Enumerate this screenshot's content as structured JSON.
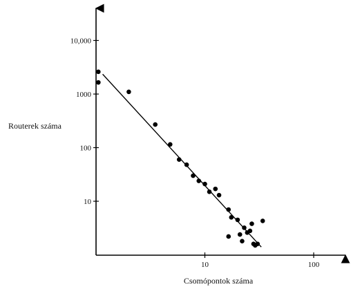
{
  "chart_data": {
    "type": "scatter",
    "title": "",
    "xlabel": "Csomópontok száma",
    "ylabel": "Routerek száma",
    "x_scale": "log",
    "y_scale": "log",
    "xlim": [
      1,
      250
    ],
    "ylim": [
      1,
      50000
    ],
    "grid": false,
    "x_ticks": [
      {
        "value": 10,
        "label": "10"
      },
      {
        "value": 100,
        "label": "100"
      }
    ],
    "y_ticks": [
      {
        "value": 10,
        "label": "10"
      },
      {
        "value": 100,
        "label": "100"
      },
      {
        "value": 1000,
        "label": "1000"
      },
      {
        "value": 10000,
        "label": "10,000"
      }
    ],
    "points": [
      {
        "x": 1.05,
        "y": 2600
      },
      {
        "x": 1.05,
        "y": 1650
      },
      {
        "x": 2.0,
        "y": 1100
      },
      {
        "x": 3.5,
        "y": 270
      },
      {
        "x": 4.8,
        "y": 115
      },
      {
        "x": 5.8,
        "y": 60
      },
      {
        "x": 6.8,
        "y": 48
      },
      {
        "x": 7.8,
        "y": 30
      },
      {
        "x": 8.8,
        "y": 24
      },
      {
        "x": 10.0,
        "y": 21
      },
      {
        "x": 11.0,
        "y": 15
      },
      {
        "x": 12.5,
        "y": 17
      },
      {
        "x": 13.5,
        "y": 13
      },
      {
        "x": 16.5,
        "y": 7
      },
      {
        "x": 17.5,
        "y": 5
      },
      {
        "x": 20.0,
        "y": 4.5
      },
      {
        "x": 16.5,
        "y": 2.2
      },
      {
        "x": 21.0,
        "y": 2.4
      },
      {
        "x": 22.0,
        "y": 1.8
      },
      {
        "x": 23.0,
        "y": 3.2
      },
      {
        "x": 24.5,
        "y": 2.6
      },
      {
        "x": 26.0,
        "y": 2.8
      },
      {
        "x": 27.0,
        "y": 3.8
      },
      {
        "x": 28.0,
        "y": 1.6
      },
      {
        "x": 29.0,
        "y": 1.5
      },
      {
        "x": 30.5,
        "y": 1.6
      },
      {
        "x": 34.0,
        "y": 4.3
      }
    ],
    "fit_line": {
      "x": [
        1.15,
        33
      ],
      "y": [
        2350,
        1.4
      ]
    }
  }
}
